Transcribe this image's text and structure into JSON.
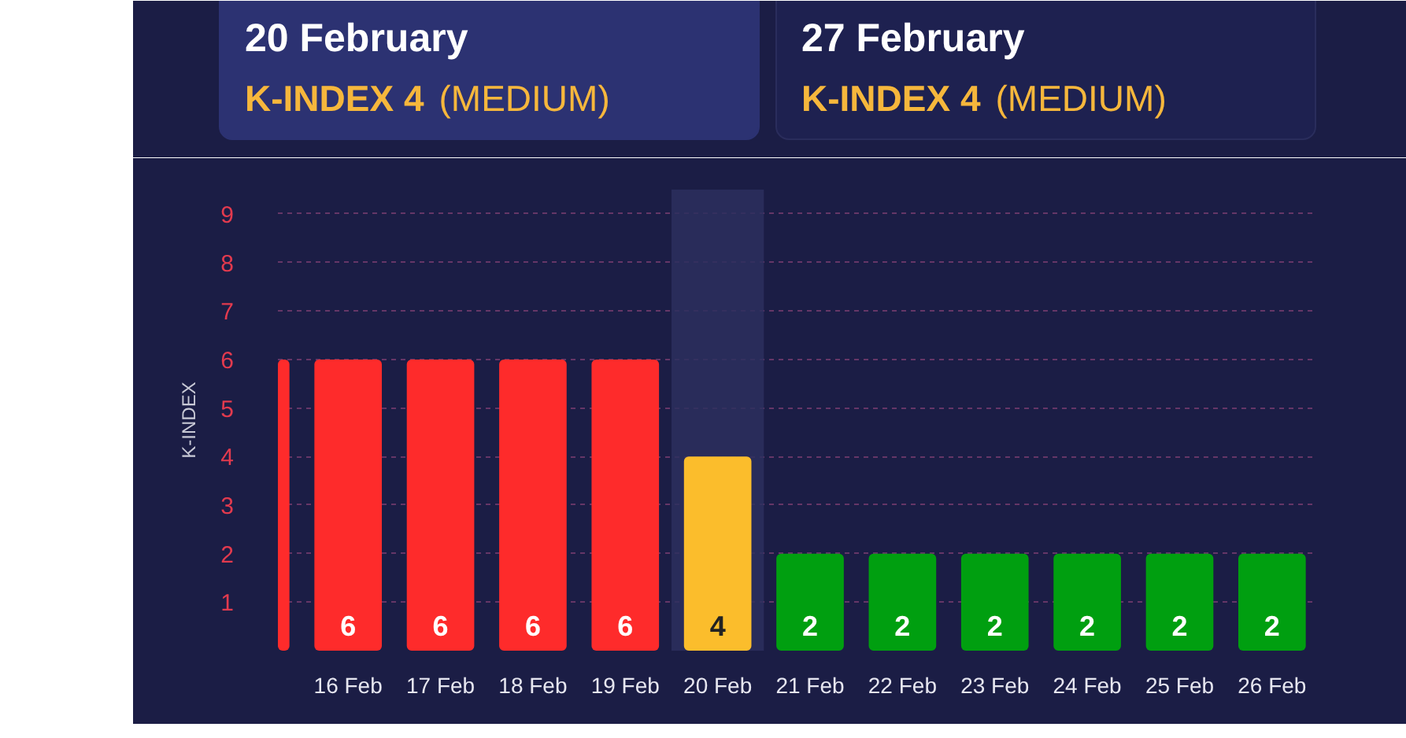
{
  "chart_data": {
    "type": "bar",
    "ylabel": "K-INDEX",
    "categories": [
      null,
      "16 Feb",
      "17 Feb",
      "18 Feb",
      "19 Feb",
      "20 Feb",
      "21 Feb",
      "22 Feb",
      "23 Feb",
      "24 Feb",
      "25 Feb",
      "26 Feb"
    ],
    "values": [
      6,
      6,
      6,
      6,
      6,
      4,
      2,
      2,
      2,
      2,
      2,
      2
    ],
    "colors": [
      "#fe2b2b",
      "#fe2b2b",
      "#fe2b2b",
      "#fe2b2b",
      "#fe2b2b",
      "#fbbd2c",
      "#009f10",
      "#009f10",
      "#009f10",
      "#009f10",
      "#009f10",
      "#009f10"
    ],
    "value_labels": [
      null,
      "6",
      "6",
      "6",
      "6",
      "4",
      "2",
      "2",
      "2",
      "2",
      "2",
      "2"
    ],
    "ylim": [
      0,
      9.5
    ],
    "yticks": [
      1,
      2,
      3,
      4,
      5,
      6,
      7,
      8,
      9
    ],
    "grid": "y",
    "bands": [
      {
        "axis": "x",
        "from": "20 Feb",
        "to": "20 Feb",
        "color": "#2c2f5e"
      }
    ],
    "annotations": [
      "20 February",
      "K-INDEX 4",
      "(MEDIUM)",
      "27 February",
      "K-INDEX 4",
      "(MEDIUM)"
    ]
  }
}
